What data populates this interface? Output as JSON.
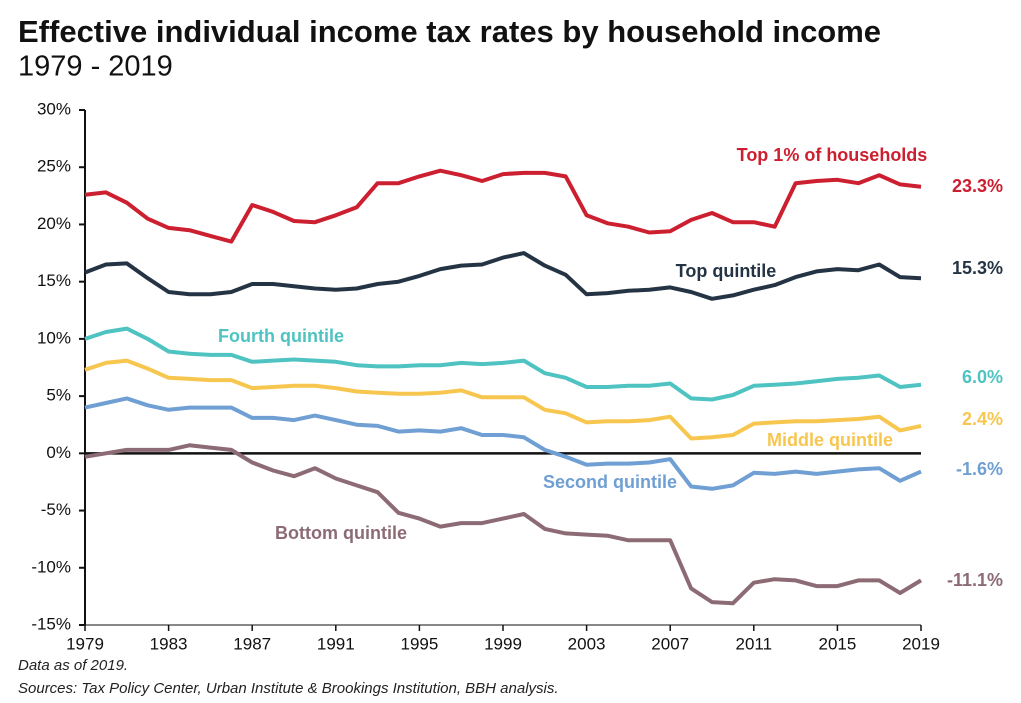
{
  "chart_data": {
    "type": "line",
    "title": "Effective individual income tax rates by household income",
    "subtitle": "1979 - 2019",
    "x": [
      1979,
      1980,
      1981,
      1982,
      1983,
      1984,
      1985,
      1986,
      1987,
      1988,
      1989,
      1990,
      1991,
      1992,
      1993,
      1994,
      1995,
      1996,
      1997,
      1998,
      1999,
      2000,
      2001,
      2002,
      2003,
      2004,
      2005,
      2006,
      2007,
      2008,
      2009,
      2010,
      2011,
      2012,
      2013,
      2014,
      2015,
      2016,
      2017,
      2018,
      2019
    ],
    "xlim": [
      1979,
      2019
    ],
    "xticks": [
      1979,
      1983,
      1987,
      1991,
      1995,
      1999,
      2003,
      2007,
      2011,
      2015,
      2019
    ],
    "ylim": [
      -15,
      30
    ],
    "yticks": [
      {
        "value": 30,
        "label": "30%"
      },
      {
        "value": 25,
        "label": "25%"
      },
      {
        "value": 20,
        "label": "20%"
      },
      {
        "value": 15,
        "label": "15%"
      },
      {
        "value": 10,
        "label": "10%"
      },
      {
        "value": 5,
        "label": "5%"
      },
      {
        "value": 0,
        "label": "0%"
      },
      {
        "value": -5,
        "label": "-5%"
      },
      {
        "value": -10,
        "label": "-10%"
      },
      {
        "value": -15,
        "label": "-15%"
      }
    ],
    "series": [
      {
        "name": "Top 1% of households",
        "color": "#cc1f2f",
        "end_label": "23.3%",
        "values": [
          22.6,
          22.8,
          21.9,
          20.5,
          19.7,
          19.5,
          19.0,
          18.5,
          21.7,
          21.1,
          20.3,
          20.2,
          20.8,
          21.5,
          23.6,
          23.6,
          24.2,
          24.7,
          24.3,
          23.8,
          24.4,
          24.5,
          24.5,
          24.2,
          20.8,
          20.1,
          19.8,
          19.3,
          19.4,
          20.4,
          21.0,
          20.2,
          20.2,
          19.8,
          23.6,
          23.8,
          23.9,
          23.6,
          24.3,
          23.5,
          23.3
        ]
      },
      {
        "name": "Top quintile",
        "color": "#253444",
        "end_label": "15.3%",
        "values": [
          15.8,
          16.5,
          16.6,
          15.3,
          14.1,
          13.9,
          13.9,
          14.1,
          14.8,
          14.8,
          14.6,
          14.4,
          14.3,
          14.4,
          14.8,
          15.0,
          15.5,
          16.1,
          16.4,
          16.5,
          17.1,
          17.5,
          16.4,
          15.6,
          13.9,
          14.0,
          14.2,
          14.3,
          14.5,
          14.1,
          13.5,
          13.8,
          14.3,
          14.7,
          15.4,
          15.9,
          16.1,
          16.0,
          16.5,
          15.4,
          15.3
        ]
      },
      {
        "name": "Fourth quintile",
        "color": "#4ec3c1",
        "end_label": "6.0%",
        "values": [
          10.0,
          10.6,
          10.9,
          10.0,
          8.9,
          8.7,
          8.6,
          8.6,
          8.0,
          8.1,
          8.2,
          8.1,
          8.0,
          7.7,
          7.6,
          7.6,
          7.7,
          7.7,
          7.9,
          7.8,
          7.9,
          8.1,
          7.0,
          6.6,
          5.8,
          5.8,
          5.9,
          5.9,
          6.1,
          4.8,
          4.7,
          5.1,
          5.9,
          6.0,
          6.1,
          6.3,
          6.5,
          6.6,
          6.8,
          5.8,
          6.0
        ]
      },
      {
        "name": "Middle quintile",
        "color": "#f7c64f",
        "end_label": "2.4%",
        "values": [
          7.3,
          7.9,
          8.1,
          7.4,
          6.6,
          6.5,
          6.4,
          6.4,
          5.7,
          5.8,
          5.9,
          5.9,
          5.7,
          5.4,
          5.3,
          5.2,
          5.2,
          5.3,
          5.5,
          4.9,
          4.9,
          4.9,
          3.8,
          3.5,
          2.7,
          2.8,
          2.8,
          2.9,
          3.2,
          1.3,
          1.4,
          1.6,
          2.6,
          2.7,
          2.8,
          2.8,
          2.9,
          3.0,
          3.2,
          2.0,
          2.4
        ]
      },
      {
        "name": "Second quintile",
        "color": "#6f9fd3",
        "end_label": "-1.6%",
        "values": [
          4.0,
          4.4,
          4.8,
          4.2,
          3.8,
          4.0,
          4.0,
          4.0,
          3.1,
          3.1,
          2.9,
          3.3,
          2.9,
          2.5,
          2.4,
          1.9,
          2.0,
          1.9,
          2.2,
          1.6,
          1.6,
          1.4,
          0.3,
          -0.3,
          -1.0,
          -0.9,
          -0.9,
          -0.8,
          -0.5,
          -2.9,
          -3.1,
          -2.8,
          -1.7,
          -1.8,
          -1.6,
          -1.8,
          -1.6,
          -1.4,
          -1.3,
          -2.4,
          -1.6
        ]
      },
      {
        "name": "Bottom quintile",
        "color": "#8c6b75",
        "end_label": "-11.1%",
        "values": [
          -0.3,
          0.0,
          0.3,
          0.3,
          0.3,
          0.7,
          0.5,
          0.3,
          -0.8,
          -1.5,
          -2.0,
          -1.3,
          -2.2,
          -2.8,
          -3.4,
          -5.2,
          -5.7,
          -6.4,
          -6.1,
          -6.1,
          -5.7,
          -5.3,
          -6.6,
          -7.0,
          -7.1,
          -7.2,
          -7.6,
          -7.6,
          -7.6,
          -11.8,
          -13.0,
          -13.1,
          -11.3,
          -11.0,
          -11.1,
          -11.6,
          -11.6,
          -11.1,
          -11.1,
          -12.2,
          -11.1
        ]
      }
    ],
    "notes": [
      "Data as of 2019.",
      "Sources: Tax Policy Center, Urban Institute & Brookings Institution, BBH analysis."
    ]
  }
}
